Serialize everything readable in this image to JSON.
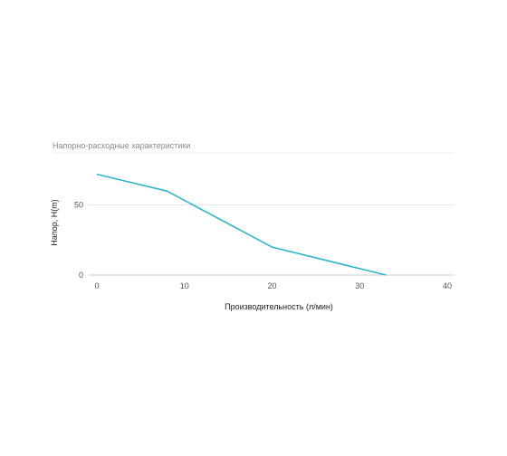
{
  "chart_data": {
    "type": "line",
    "title": "Напорно-расходные характеристики",
    "xlabel": "Производительность (л/мин)",
    "ylabel": "Напор, H(m)",
    "xlim": [
      0,
      40
    ],
    "ylim": [
      0,
      75
    ],
    "xticks": [
      "0",
      "10",
      "20",
      "30",
      "40"
    ],
    "yticks": [
      "0",
      "50"
    ],
    "grid": true,
    "legend": "none",
    "colors": {
      "line": "#2fb5cc",
      "grid": "#e6e6e6",
      "baseline": "#cfcfcf",
      "title": "#8a8a8a"
    },
    "series": [
      {
        "x": [
          0,
          8,
          20,
          33
        ],
        "y": [
          72,
          60,
          20,
          0
        ]
      }
    ]
  }
}
